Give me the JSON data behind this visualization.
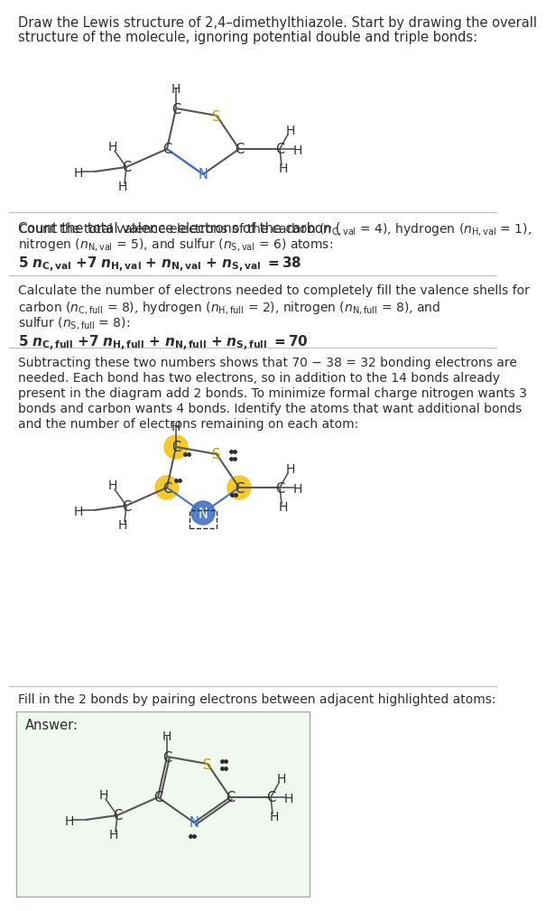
{
  "bg_color": "#ffffff",
  "text_color": "#2d2d2d",
  "title_text": "Draw the Lewis structure of 2,4–dimethylthiazole. Start by drawing the overall\nstructure of the molecule, ignoring potential double and triple bonds:",
  "section2_text": "Count the total valence electrons of the carbon (η₀₀₀₀₀ = 4), hydrogen (η₀₀₀₀₀ = 1),\nnitrogen (η₀₀₀₀₀ = 5), and sulfur (η₀₀₀₀₀ = 6) atoms:",
  "section3_text": "Calculate the number of electrons needed to completely fill the valence shells for\ncarbon (η₀₀₀₀₀ = 8), hydrogen (η₀₀₀₀₀ = 2), nitrogen (η₀₀₀₀₀ = 8), and\nsulfur (η₀₀₀₀₀ = 8):",
  "section4_text": "Subtracting these two numbers shows that 70 − 38 = 32 bonding electrons are\nneeded. Each bond has two electrons, so in addition to the 14 bonds already\npresent in the diagram add 2 bonds. To minimize formal charge nitrogen wants 3\nbonds and carbon wants 4 bonds. Identify the atoms that want additional bonds\nand the number of electrons remaining on each atom:",
  "section5_text": "Fill in the 2 bonds by pairing electrons between adjacent highlighted atoms:",
  "C_color": "#4472c4",
  "N_color": "#4472c4",
  "S_color": "#b8a000",
  "highlight_color": "#f5c518",
  "highlight_N_color": "#4472c4",
  "bond_color": "#555555",
  "answer_bg": "#e8f4e8",
  "answer_border": "#aaaaaa"
}
